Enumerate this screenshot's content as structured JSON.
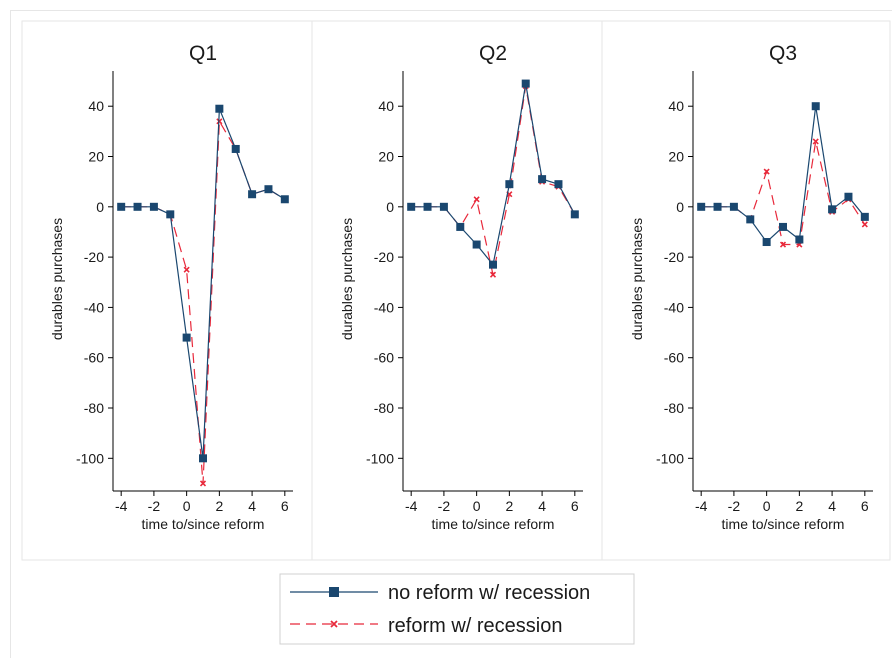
{
  "legend": {
    "items": [
      {
        "label": "no reform w/ recession",
        "color": "#1a476f",
        "style": "solid",
        "marker": "square"
      },
      {
        "label": "reform w/ recession",
        "color": "#e8293b",
        "style": "dashed",
        "marker": "x"
      }
    ]
  },
  "chart_data": [
    {
      "type": "line",
      "title": "Q1",
      "xlabel": "time to/since reform",
      "ylabel": "durables purchases",
      "x": [
        -4,
        -3,
        -2,
        -1,
        0,
        1,
        2,
        3,
        4,
        5,
        6
      ],
      "xticks": [
        -4,
        -2,
        0,
        2,
        4,
        6
      ],
      "yticks": [
        40,
        20,
        0,
        -20,
        -40,
        -60,
        -80,
        -100
      ],
      "xlim": [
        -4.5,
        6.5
      ],
      "ylim": [
        -113,
        54
      ],
      "grid": false,
      "series": [
        {
          "name": "no reform w/ recession",
          "values": [
            0,
            0,
            0,
            -3,
            -52,
            -100,
            39,
            23,
            5,
            7,
            3
          ]
        },
        {
          "name": "reform w/ recession",
          "values": [
            0,
            0,
            0,
            -3,
            -25,
            -110,
            34,
            23,
            5,
            7,
            3
          ]
        }
      ]
    },
    {
      "type": "line",
      "title": "Q2",
      "xlabel": "time to/since reform",
      "ylabel": "durables purchases",
      "x": [
        -4,
        -3,
        -2,
        -1,
        0,
        1,
        2,
        3,
        4,
        5,
        6
      ],
      "xticks": [
        -4,
        -2,
        0,
        2,
        4,
        6
      ],
      "yticks": [
        40,
        20,
        0,
        -20,
        -40,
        -60,
        -80,
        -100
      ],
      "xlim": [
        -4.5,
        6.5
      ],
      "ylim": [
        -113,
        54
      ],
      "grid": false,
      "series": [
        {
          "name": "no reform w/ recession",
          "values": [
            0,
            0,
            0,
            -8,
            -15,
            -23,
            9,
            49,
            11,
            9,
            -3
          ]
        },
        {
          "name": "reform w/ recession",
          "values": [
            0,
            0,
            0,
            -8,
            3,
            -27,
            5,
            48,
            10,
            8,
            -3
          ]
        }
      ]
    },
    {
      "type": "line",
      "title": "Q3",
      "xlabel": "time to/since reform",
      "ylabel": "durables purchases",
      "x": [
        -4,
        -3,
        -2,
        -1,
        0,
        1,
        2,
        3,
        4,
        5,
        6
      ],
      "xticks": [
        -4,
        -2,
        0,
        2,
        4,
        6
      ],
      "yticks": [
        40,
        20,
        0,
        -20,
        -40,
        -60,
        -80,
        -100
      ],
      "xlim": [
        -4.5,
        6.5
      ],
      "ylim": [
        -113,
        54
      ],
      "grid": false,
      "series": [
        {
          "name": "no reform w/ recession",
          "values": [
            0,
            0,
            0,
            -5,
            -14,
            -8,
            -13,
            40,
            -1,
            4,
            -4
          ]
        },
        {
          "name": "reform w/ recession",
          "values": [
            0,
            0,
            0,
            -5,
            14,
            -15,
            -15,
            26,
            -2,
            3,
            -7
          ]
        }
      ]
    }
  ]
}
